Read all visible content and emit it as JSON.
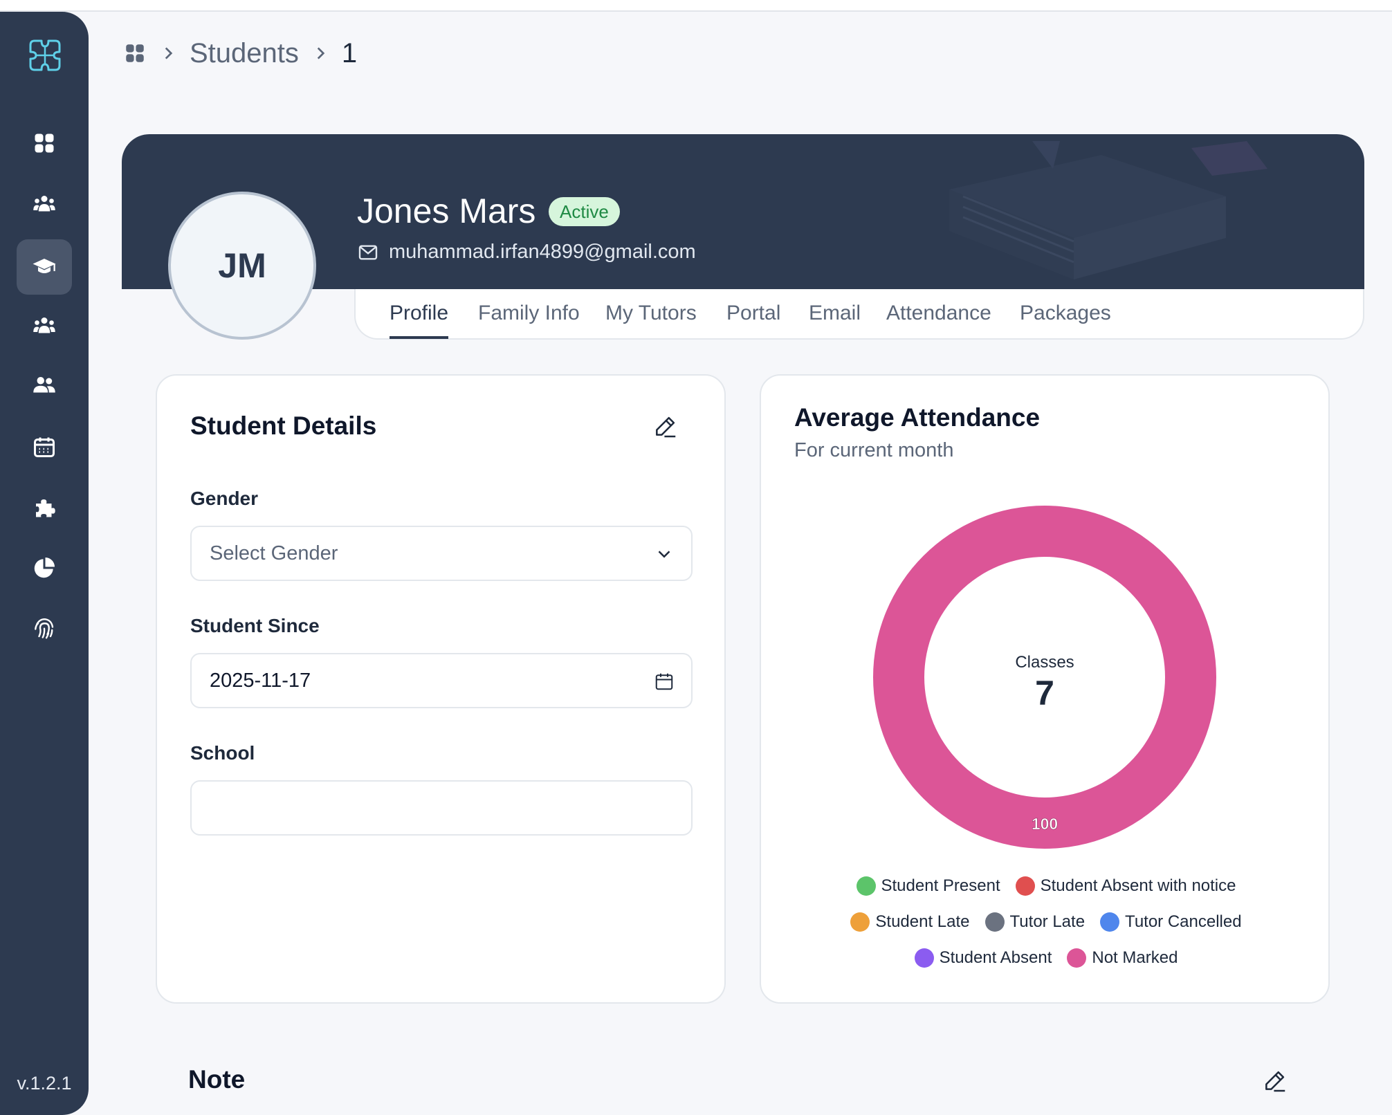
{
  "app": {
    "version": "v.1.2.1"
  },
  "sidebar": {
    "items": [
      {
        "name": "dashboard",
        "icon": "grid-icon",
        "active": false
      },
      {
        "name": "groups",
        "icon": "group-icon",
        "active": false
      },
      {
        "name": "students",
        "icon": "graduation-cap-icon",
        "active": true
      },
      {
        "name": "families",
        "icon": "family-icon",
        "active": false
      },
      {
        "name": "tutors",
        "icon": "users-icon",
        "active": false
      },
      {
        "name": "calendar",
        "icon": "calendar-icon",
        "active": false
      },
      {
        "name": "integrations",
        "icon": "puzzle-icon",
        "active": false
      },
      {
        "name": "reports",
        "icon": "pie-chart-icon",
        "active": false
      },
      {
        "name": "security",
        "icon": "fingerprint-icon",
        "active": false
      }
    ]
  },
  "breadcrumb": {
    "section": "Students",
    "current": "1"
  },
  "profile": {
    "initials": "JM",
    "name": "Jones Mars",
    "status": "Active",
    "email": "muhammad.irfan4899@gmail.com"
  },
  "tabs": [
    {
      "label": "Profile",
      "active": true
    },
    {
      "label": "Family Info",
      "active": false
    },
    {
      "label": "My Tutors",
      "active": false
    },
    {
      "label": "Portal",
      "active": false
    },
    {
      "label": "Email",
      "active": false
    },
    {
      "label": "Attendance",
      "active": false
    },
    {
      "label": "Packages",
      "active": false
    }
  ],
  "details": {
    "title": "Student Details",
    "gender_label": "Gender",
    "gender_placeholder": "Select Gender",
    "since_label": "Student Since",
    "since_value": "2025-11-17",
    "school_label": "School",
    "school_value": ""
  },
  "attendance": {
    "title": "Average Attendance",
    "subtitle": "For current month",
    "center_label": "Classes",
    "center_value": "7"
  },
  "chart_data": {
    "type": "pie",
    "categories": [
      "Student Present",
      "Student Absent with notice",
      "Student Late",
      "Tutor Late",
      "Tutor Cancelled",
      "Student Absent",
      "Not Marked"
    ],
    "values": [
      0,
      0,
      0,
      0,
      0,
      0,
      100
    ],
    "colors": [
      "#5cc46a",
      "#e04f4f",
      "#eea03a",
      "#6b7280",
      "#4f86ec",
      "#8b5cf0",
      "#dc5597"
    ],
    "data_labels": [
      "",
      "",
      "",
      "",
      "",
      "",
      "100"
    ],
    "legend_rows": [
      [
        0,
        1
      ],
      [
        2,
        3,
        4
      ],
      [
        5,
        6
      ]
    ],
    "legend_position": "bottom"
  },
  "note": {
    "title": "Note"
  }
}
